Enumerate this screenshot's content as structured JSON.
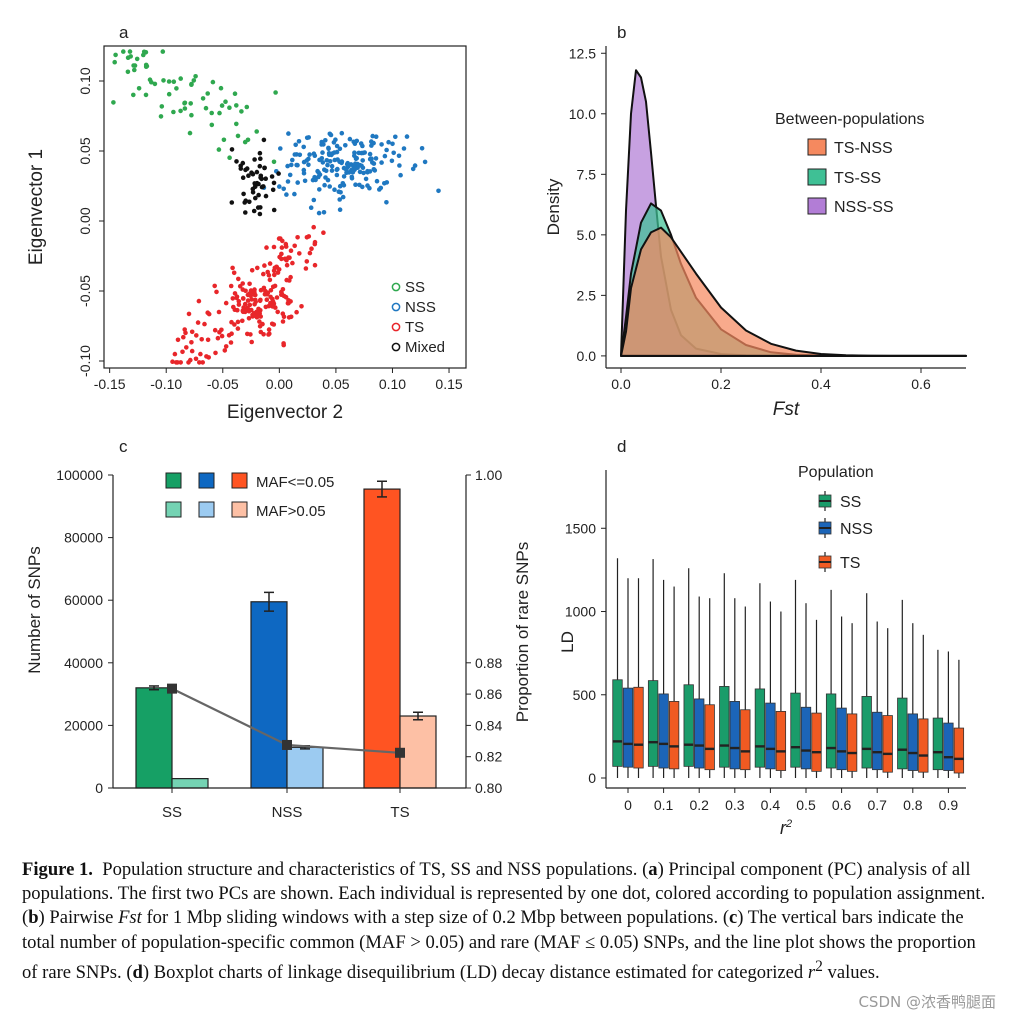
{
  "figure": {
    "panel_letters": [
      "a",
      "b",
      "c",
      "d"
    ],
    "caption": {
      "label": "Figure 1.",
      "intro": "Population structure and characteristics of TS, SS and NSS populations. (",
      "a_letter": "a",
      "a_text": ") Principal component (PC) analysis of all populations. The first two PCs are shown. Each individual is represented by one dot, colored according to population assignment. (",
      "b_letter": "b",
      "b_text_1": ") Pairwise ",
      "b_fst": "Fst",
      "b_text_2": " for 1 Mbp sliding windows with a step size of 0.2 Mbp between populations. (",
      "c_letter": "c",
      "c_text": ") The vertical bars indicate the total number of population-specific common (MAF > 0.05) and rare (MAF ≤ 0.05) SNPs, and the line plot shows the proportion of rare SNPs. (",
      "d_letter": "d",
      "d_text_1": ") Boxplot charts of linkage disequilibrium (LD) decay distance estimated for categorized ",
      "d_r": "r",
      "d_sup": "2",
      "d_text_2": " values."
    },
    "watermark": "CSDN @浓香鸭腿面"
  },
  "colors": {
    "SS": "#2fa84f",
    "NSS": "#1f78c1",
    "TS": "#e8262a",
    "Mixed": "#111111",
    "bar_SS_rare": "#16a065",
    "bar_SS_common": "#74d3b3",
    "bar_NSS_rare": "#0e68c2",
    "bar_NSS_common": "#9ccbf1",
    "bar_TS_rare": "#ff5422",
    "bar_TS_common": "#fdc0a5",
    "fst_TS_NSS": "#f5895f",
    "fst_TS_SS": "#3fc095",
    "fst_NSS_SS": "#b27dd6",
    "box_SS": "#1a9c6a",
    "box_NSS": "#1c65b8",
    "box_TS": "#f05a22"
  },
  "chart_data": [
    {
      "panel": "a",
      "type": "scatter",
      "xlabel": "Eigenvector 2",
      "ylabel": "Eigenvector 1",
      "xlim": [
        -0.155,
        0.165
      ],
      "ylim": [
        -0.105,
        0.125
      ],
      "xticks": [
        "-0.15",
        "-0.10",
        "-0.05",
        "0.00",
        "0.05",
        "0.10",
        "0.15"
      ],
      "yticks": [
        "0.10",
        "0.05",
        "0.00",
        "-0.05",
        "-0.10"
      ],
      "legend": [
        "SS",
        "NSS",
        "TS",
        "Mixed"
      ],
      "legend_position": "bottom-right",
      "series": [
        {
          "name": "SS",
          "center": [
            -0.07,
            0.075
          ],
          "spread": [
            0.05,
            0.025
          ],
          "n": 70
        },
        {
          "name": "NSS",
          "center": [
            0.055,
            0.04
          ],
          "spread": [
            0.05,
            0.022
          ],
          "n": 190
        },
        {
          "name": "TS",
          "center": [
            -0.01,
            -0.045
          ],
          "spread": [
            0.045,
            0.03
          ],
          "n": 220
        },
        {
          "name": "Mixed",
          "center": [
            -0.02,
            0.03
          ],
          "spread": [
            0.02,
            0.025
          ],
          "n": 50
        }
      ]
    },
    {
      "panel": "b",
      "type": "area",
      "title": "Between-populations",
      "xlabel": "Fst",
      "ylabel": "Density",
      "xlim": [
        -0.03,
        0.69
      ],
      "ylim": [
        -0.5,
        12.8
      ],
      "xticks": [
        "0.0",
        "0.2",
        "0.4",
        "0.6"
      ],
      "yticks": [
        "0.0",
        "2.5",
        "5.0",
        "7.5",
        "10.0",
        "12.5"
      ],
      "legend_position": "top-right",
      "series": [
        {
          "name": "TS-NSS",
          "x": [
            0,
            0.01,
            0.02,
            0.04,
            0.06,
            0.08,
            0.1,
            0.12,
            0.15,
            0.2,
            0.25,
            0.3,
            0.35,
            0.4,
            0.45,
            0.5,
            0.55,
            0.6,
            0.69
          ],
          "y": [
            0,
            1.0,
            2.8,
            4.4,
            5.1,
            5.3,
            4.9,
            4.3,
            3.4,
            2.0,
            1.05,
            0.5,
            0.22,
            0.08,
            0.03,
            0.01,
            0.0,
            0.0,
            0.0
          ]
        },
        {
          "name": "TS-SS",
          "x": [
            0,
            0.01,
            0.02,
            0.04,
            0.06,
            0.08,
            0.1,
            0.12,
            0.15,
            0.2,
            0.25,
            0.3,
            0.35,
            0.4,
            0.45,
            0.5,
            0.69
          ],
          "y": [
            0,
            1.6,
            3.4,
            5.5,
            6.3,
            6.0,
            5.0,
            3.8,
            2.4,
            1.1,
            0.45,
            0.15,
            0.05,
            0.02,
            0.0,
            0.0,
            0.0
          ]
        },
        {
          "name": "NSS-SS",
          "x": [
            0,
            0.005,
            0.01,
            0.02,
            0.03,
            0.04,
            0.05,
            0.06,
            0.07,
            0.08,
            0.1,
            0.12,
            0.15,
            0.2,
            0.25,
            0.3,
            0.69
          ],
          "y": [
            0,
            3.0,
            6.0,
            10.0,
            11.8,
            11.5,
            10.5,
            8.4,
            6.2,
            4.1,
            1.9,
            0.85,
            0.3,
            0.08,
            0.02,
            0.0,
            0.0
          ]
        }
      ]
    },
    {
      "panel": "c",
      "type": "bar",
      "categories": [
        "SS",
        "NSS",
        "TS"
      ],
      "ylabel": "Number of SNPs",
      "ylabel_right": "Proportion of rare SNPs",
      "ylim": [
        0,
        100000
      ],
      "ylim_right": [
        0.8,
        1.0
      ],
      "yticks": [
        "0",
        "20000",
        "40000",
        "60000",
        "80000",
        "100000"
      ],
      "yticks_right": [
        "0.80",
        "0.82",
        "0.84",
        "0.86",
        "0.88",
        "1.00"
      ],
      "legend": [
        "MAF<=0.05",
        "MAF>0.05"
      ],
      "legend_position": "top",
      "series": [
        {
          "name": "MAF<=0.05",
          "values": [
            32000,
            59500,
            95500
          ],
          "errors": [
            600,
            3000,
            2500
          ]
        },
        {
          "name": "MAF>0.05",
          "values": [
            3000,
            13000,
            23000
          ],
          "errors": [
            0,
            500,
            1200
          ]
        }
      ],
      "line": {
        "name": "Proportion of rare SNPs",
        "values": [
          0.8635,
          0.8275,
          0.8225
        ]
      }
    },
    {
      "panel": "d",
      "type": "box",
      "title": "Population",
      "xlabel": "r",
      "xlabel_sup": "2",
      "ylabel": "LD",
      "ylim": [
        -60,
        1850
      ],
      "yticks": [
        "0",
        "500",
        "1000",
        "1500"
      ],
      "categories": [
        "0",
        "0.1",
        "0.2",
        "0.3",
        "0.4",
        "0.5",
        "0.6",
        "0.7",
        "0.8",
        "0.9"
      ],
      "legend": [
        "SS",
        "NSS",
        "TS"
      ],
      "legend_position": "top",
      "series": [
        {
          "name": "SS",
          "median": [
            220,
            215,
            200,
            195,
            190,
            185,
            180,
            175,
            170,
            155
          ],
          "q1": [
            70,
            70,
            70,
            65,
            65,
            65,
            60,
            60,
            55,
            50
          ],
          "q3": [
            590,
            585,
            560,
            550,
            535,
            510,
            505,
            490,
            480,
            360
          ],
          "whisker_high": [
            1320,
            1315,
            1260,
            1230,
            1170,
            1190,
            1130,
            1110,
            1070,
            770
          ]
        },
        {
          "name": "NSS",
          "median": [
            205,
            205,
            195,
            180,
            175,
            165,
            160,
            155,
            150,
            125
          ],
          "q1": [
            65,
            60,
            60,
            55,
            55,
            55,
            50,
            50,
            45,
            45
          ],
          "q3": [
            540,
            505,
            475,
            460,
            450,
            425,
            420,
            395,
            385,
            330
          ],
          "whisker_high": [
            1200,
            1190,
            1090,
            1080,
            1060,
            1050,
            970,
            940,
            930,
            760
          ]
        },
        {
          "name": "TS",
          "median": [
            200,
            190,
            175,
            160,
            160,
            155,
            150,
            145,
            135,
            115
          ],
          "q1": [
            60,
            55,
            50,
            50,
            45,
            40,
            40,
            35,
            35,
            30
          ],
          "q3": [
            545,
            460,
            440,
            410,
            400,
            390,
            385,
            375,
            355,
            300
          ],
          "whisker_high": [
            1200,
            1150,
            1080,
            1030,
            1000,
            950,
            930,
            900,
            860,
            710
          ]
        }
      ]
    }
  ]
}
